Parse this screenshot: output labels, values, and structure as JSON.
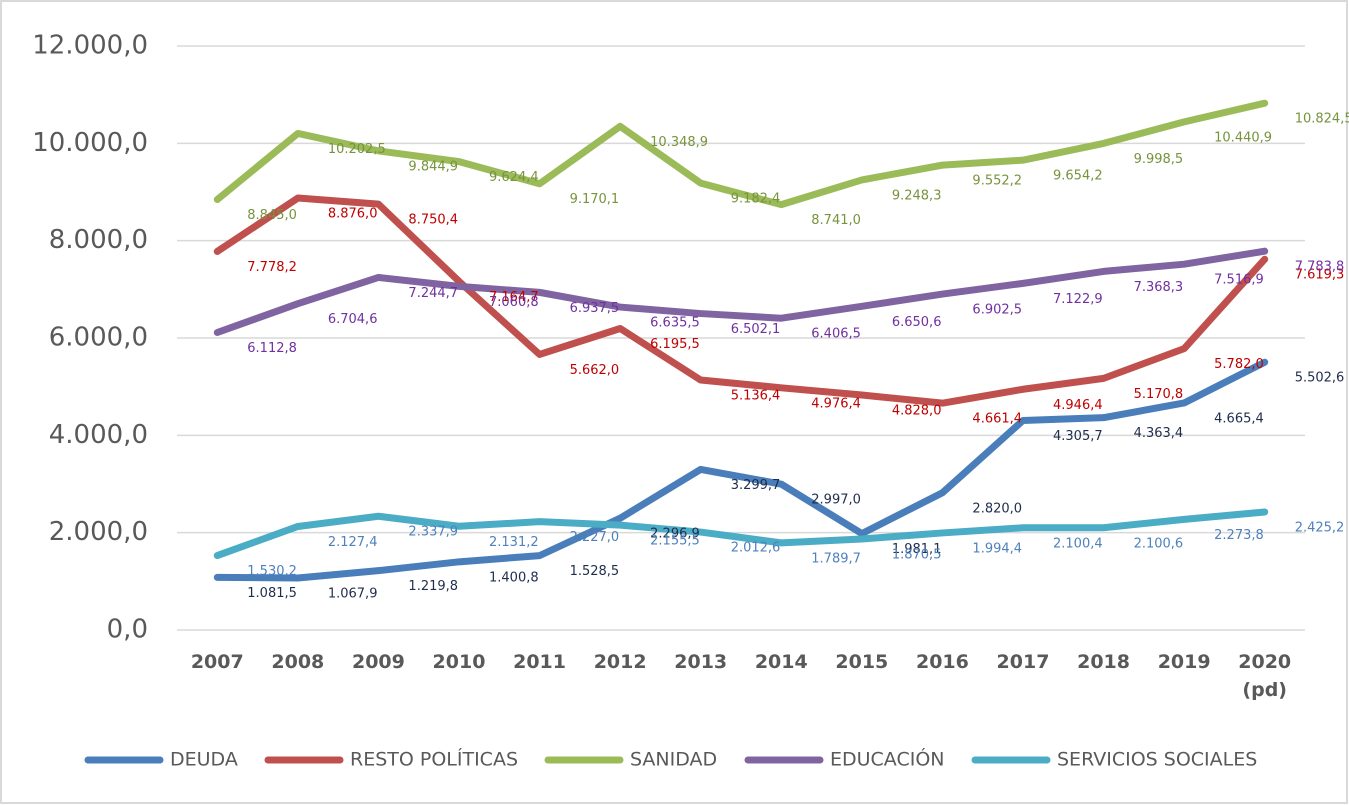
{
  "chart_data": {
    "type": "line",
    "categories": [
      "2007",
      "2008",
      "2009",
      "2010",
      "2011",
      "2012",
      "2013",
      "2014",
      "2015",
      "2016",
      "2017",
      "2018",
      "2019",
      "2020 (pd)"
    ],
    "ylim": [
      0,
      12000
    ],
    "yticks": [
      {
        "value": 0,
        "label": "0,0"
      },
      {
        "value": 2000,
        "label": "2.000,0"
      },
      {
        "value": 4000,
        "label": "4.000,0"
      },
      {
        "value": 6000,
        "label": "6.000,0"
      },
      {
        "value": 8000,
        "label": "8.000,0"
      },
      {
        "value": 10000,
        "label": "10.000,0"
      },
      {
        "value": 12000,
        "label": "12.000,0"
      }
    ],
    "grid": true,
    "legend": "bottom",
    "series": [
      {
        "name": "DEUDA",
        "color": "#4a7ebb",
        "label_color": "#1f2d4d",
        "values": [
          1081.5,
          1067.9,
          1219.8,
          1400.8,
          1528.5,
          2296.9,
          3299.7,
          2997.0,
          1981.1,
          2820.0,
          4305.7,
          4363.4,
          4665.4,
          5502.6
        ],
        "value_labels": [
          "1.081,5",
          "1.067,9",
          "1.219,8",
          "1.400,8",
          "1.528,5",
          "2.296,9",
          "3.299,7",
          "2.997,0",
          "1.981,1",
          "2.820,0",
          "4.305,7",
          "4.363,4",
          "4.665,4",
          "5.502,6"
        ]
      },
      {
        "name": "RESTO POLÍTICAS",
        "color": "#c0504d",
        "label_color": "#c00000",
        "values": [
          7778.2,
          8876.0,
          8750.4,
          7164.7,
          5662.0,
          6195.5,
          5136.4,
          4976.4,
          4828.0,
          4661.4,
          4946.4,
          5170.8,
          5782.0,
          7619.3
        ],
        "value_labels": [
          "7.778,2",
          "8.876,0",
          "8.750,4",
          "7.164,7",
          "5.662,0",
          "6.195,5",
          "5.136,4",
          "4.976,4",
          "4.828,0",
          "4.661,4",
          "4.946,4",
          "5.170,8",
          "5.782,0",
          "7.619,3"
        ]
      },
      {
        "name": "SANIDAD",
        "color": "#9bbb59",
        "label_color": "#77933c",
        "values": [
          8845.0,
          10202.5,
          9844.9,
          9624.4,
          9170.1,
          10348.9,
          9182.4,
          8741.0,
          9248.3,
          9552.2,
          9654.2,
          9998.5,
          10440.9,
          10824.5
        ],
        "value_labels": [
          "8.845,0",
          "10.202,5",
          "9.844,9",
          "9.624,4",
          "9.170,1",
          "10.348,9",
          "9.182,4",
          "8.741,0",
          "9.248,3",
          "9.552,2",
          "9.654,2",
          "9.998,5",
          "10.440,9",
          "10.824,5"
        ]
      },
      {
        "name": "EDUCACIÓN",
        "color": "#8064a2",
        "label_color": "#7030a0",
        "values": [
          6112.8,
          6704.6,
          7244.7,
          7060.8,
          6937.5,
          6635.5,
          6502.1,
          6406.5,
          6650.6,
          6902.5,
          7122.9,
          7368.3,
          7516.9,
          7783.8
        ],
        "value_labels": [
          "6.112,8",
          "6.704,6",
          "7.244,7",
          "7.060,8",
          "6.937,5",
          "6.635,5",
          "6.502,1",
          "6.406,5",
          "6.650,6",
          "6.902,5",
          "7.122,9",
          "7.368,3",
          "7.516,9",
          "7.783,8"
        ]
      },
      {
        "name": "SERVICIOS SOCIALES",
        "color": "#4bacc6",
        "label_color": "#4f81bd",
        "values": [
          1530.2,
          2127.4,
          2337.9,
          2131.2,
          2227.0,
          2155.5,
          2012.6,
          1789.7,
          1870.5,
          1994.4,
          2100.4,
          2100.6,
          2273.8,
          2425.2
        ],
        "value_labels": [
          "1.530,2",
          "2.127,4",
          "2.337,9",
          "2.131,2",
          "2.227,0",
          "2.155,5",
          "2.012,6",
          "1.789,7",
          "1.870,5",
          "1.994,4",
          "2.100,4",
          "2.100,6",
          "2.273,8",
          "2.425,2"
        ]
      }
    ]
  }
}
